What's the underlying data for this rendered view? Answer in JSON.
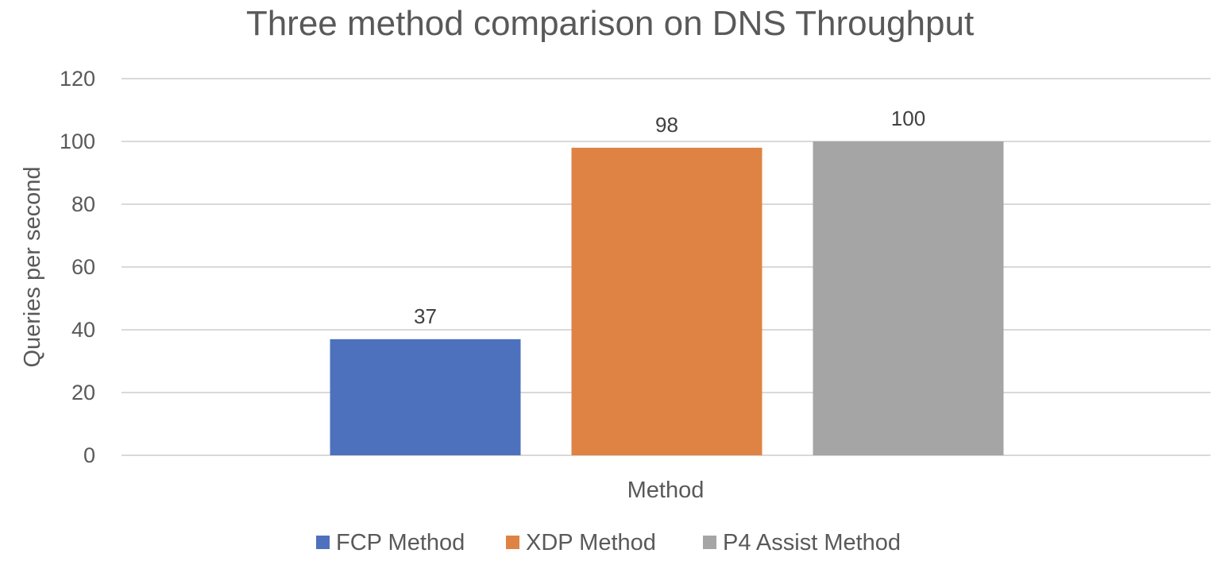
{
  "chart_data": {
    "type": "bar",
    "title": "Three method comparison on DNS Throughput",
    "xlabel": "Method",
    "ylabel": "Queries per second",
    "ylim": [
      0,
      120
    ],
    "yticks": [
      0,
      20,
      40,
      60,
      80,
      100,
      120
    ],
    "ytick_labels": [
      "0",
      "20",
      "40",
      "60",
      "80",
      "100",
      "120"
    ],
    "grid": true,
    "legend_position": "bottom",
    "categories": [
      "Method"
    ],
    "series": [
      {
        "name": "FCP Method",
        "values": [
          37
        ],
        "label": "37",
        "color": "#4e71be"
      },
      {
        "name": "XDP Method",
        "values": [
          98
        ],
        "label": "98",
        "color": "#de8344"
      },
      {
        "name": "P4 Assist Method",
        "values": [
          100
        ],
        "label": "100",
        "color": "#a5a5a5"
      }
    ]
  }
}
